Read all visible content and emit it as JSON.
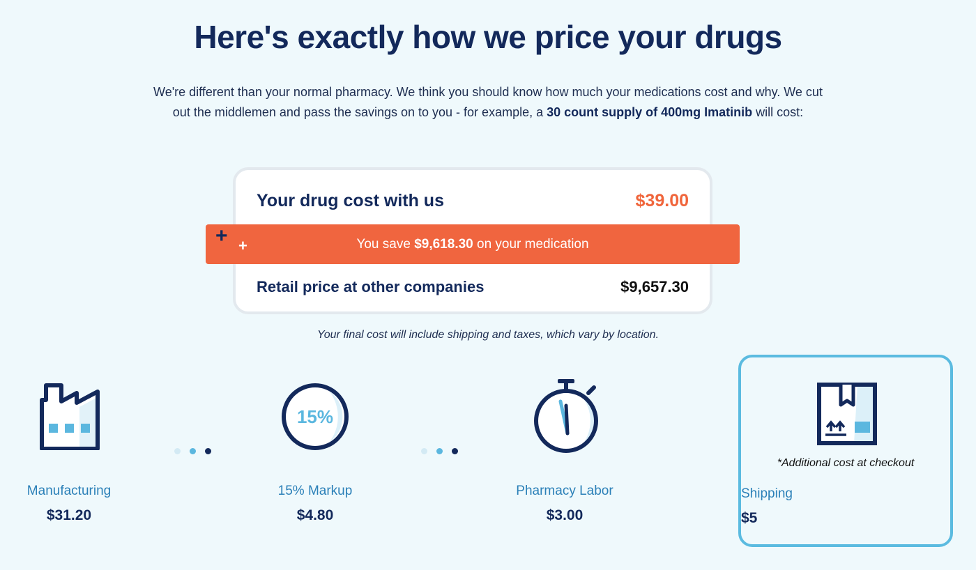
{
  "header": {
    "title": "Here's exactly how we price your drugs",
    "intro_part1": "We're different than your normal pharmacy. We think you should know how much your medications cost and why. We cut out the middlemen and pass the savings on to you - for example, a ",
    "intro_bold": "30 count supply of 400mg Imatinib",
    "intro_part2": " will cost:"
  },
  "price_card": {
    "our_cost_label": "Your drug cost with us",
    "our_cost_value": "$39.00",
    "savings_prefix": "You save ",
    "savings_amount": "$9,618.30",
    "savings_suffix": " on your medication",
    "retail_label": "Retail price at other companies",
    "retail_value": "$9,657.30"
  },
  "note": "Your final cost will include shipping and taxes, which vary by location.",
  "breakdown": {
    "manufacturing": {
      "label": "Manufacturing",
      "value": "$31.20",
      "icon": "factory-icon"
    },
    "markup": {
      "label": "15% Markup",
      "value": "$4.80",
      "icon": "percent-badge-icon",
      "badge_text": "15%"
    },
    "labor": {
      "label": "Pharmacy Labor",
      "value": "$3.00",
      "icon": "stopwatch-icon"
    },
    "shipping": {
      "label": "Shipping",
      "value": "$5",
      "note": "*Additional cost at checkout",
      "icon": "package-box-icon"
    }
  },
  "colors": {
    "navy": "#13295b",
    "accent_orange": "#f0653b",
    "light_blue": "#5bb7df",
    "background": "#eff9fc"
  }
}
